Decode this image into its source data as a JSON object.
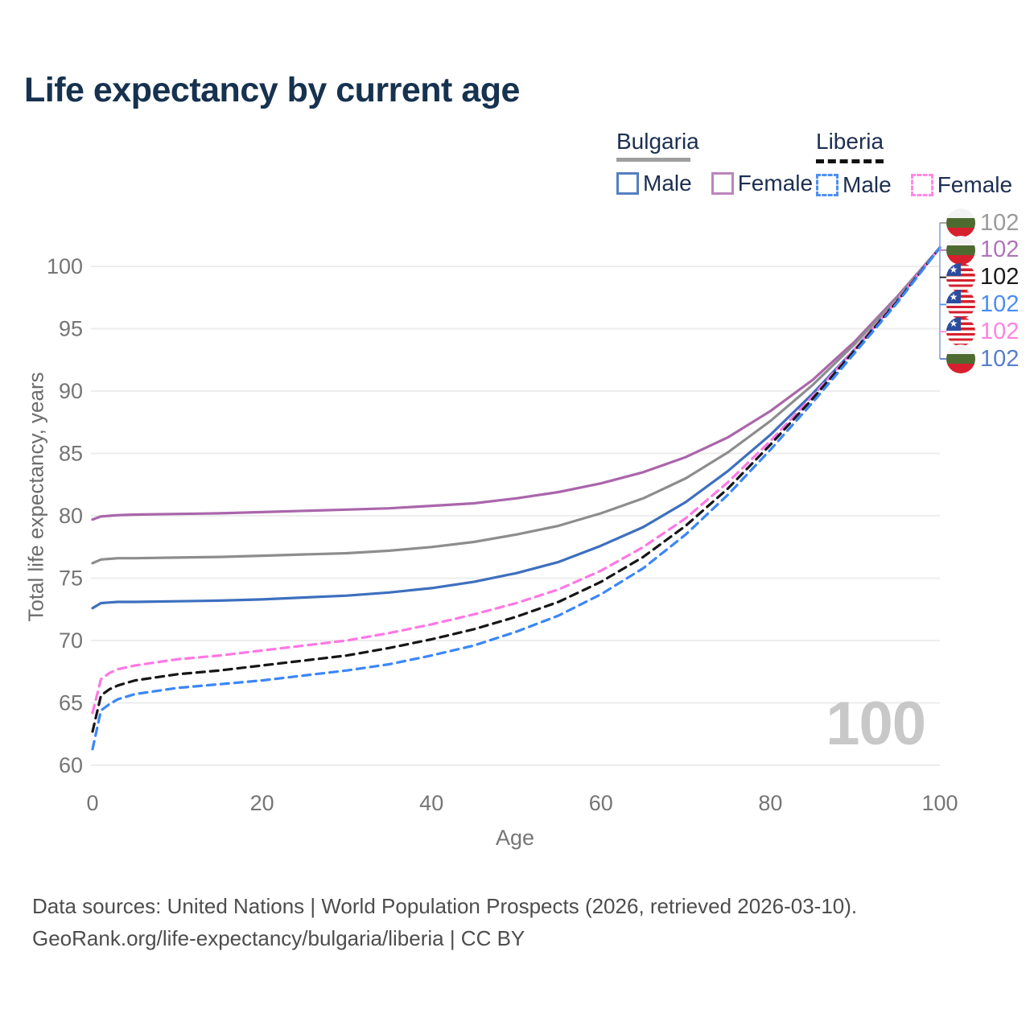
{
  "title": "Life expectancy by current age",
  "legend": {
    "groups": [
      {
        "label": "Bulgaria",
        "line_style": "solid",
        "underline_color": "#9e9e9e",
        "items": [
          {
            "label": "Male",
            "color": "#3d6fbe",
            "dashed": false
          },
          {
            "label": "Female",
            "color": "#aa65ab",
            "dashed": false
          }
        ]
      },
      {
        "label": "Liberia",
        "line_style": "dashed",
        "underline_color": "#111111",
        "items": [
          {
            "label": "Male",
            "color": "#3b87f7",
            "dashed": true
          },
          {
            "label": "Female",
            "color": "#ff77e4",
            "dashed": true
          }
        ]
      }
    ]
  },
  "axes": {
    "x": {
      "title": "Age",
      "ticks": [
        0,
        20,
        40,
        60,
        80,
        100
      ],
      "range": [
        0,
        100
      ]
    },
    "y": {
      "title": "Total life expectancy, years",
      "ticks": [
        60,
        65,
        70,
        75,
        80,
        85,
        90,
        95,
        100
      ],
      "range": [
        58,
        103
      ],
      "grid": true
    }
  },
  "watermark": {
    "value": "100"
  },
  "end_labels": [
    {
      "flag": "bulgaria",
      "series": "Bulgaria Both",
      "value": "102",
      "color": "#9a9a9a"
    },
    {
      "flag": "bulgaria",
      "series": "Bulgaria Female",
      "value": "102",
      "color": "#af74b8"
    },
    {
      "flag": "liberia",
      "series": "Liberia Both",
      "value": "102",
      "color": "#1a1a1a"
    },
    {
      "flag": "liberia",
      "series": "Liberia Male",
      "value": "102",
      "color": "#4a8ef2"
    },
    {
      "flag": "liberia",
      "series": "Liberia Female",
      "value": "102",
      "color": "#ff83e4"
    },
    {
      "flag": "bulgaria",
      "series": "Bulgaria Male",
      "value": "102",
      "color": "#597fcd"
    }
  ],
  "chart_data": {
    "type": "line",
    "title": "Life expectancy by current age",
    "xlabel": "Age",
    "ylabel": "Total life expectancy, years",
    "xlim": [
      0,
      100
    ],
    "ylim": [
      58,
      103
    ],
    "grid": "horizontal",
    "legend_position": "top-right",
    "x": [
      0,
      1,
      2,
      3,
      5,
      10,
      15,
      20,
      25,
      30,
      35,
      40,
      45,
      50,
      55,
      60,
      65,
      70,
      75,
      80,
      85,
      90,
      95,
      100
    ],
    "series": [
      {
        "name": "Bulgaria Female",
        "country": "Bulgaria",
        "sex": "female",
        "color": "#aa65ab",
        "dashed": false,
        "values": [
          79.7,
          79.95,
          80.0,
          80.05,
          80.1,
          80.15,
          80.2,
          80.3,
          80.4,
          80.5,
          80.6,
          80.8,
          81.0,
          81.4,
          81.9,
          82.6,
          83.5,
          84.7,
          86.3,
          88.4,
          90.9,
          94.0,
          97.6,
          101.5
        ]
      },
      {
        "name": "Bulgaria Both",
        "country": "Bulgaria",
        "sex": "both",
        "color": "#8d8d8d",
        "dashed": false,
        "values": [
          76.2,
          76.5,
          76.55,
          76.6,
          76.6,
          76.65,
          76.7,
          76.8,
          76.9,
          77.0,
          77.2,
          77.5,
          77.9,
          78.5,
          79.2,
          80.2,
          81.4,
          83.0,
          85.1,
          87.6,
          90.5,
          93.8,
          97.5,
          101.5
        ]
      },
      {
        "name": "Bulgaria Male",
        "country": "Bulgaria",
        "sex": "male",
        "color": "#3d6fbe",
        "dashed": false,
        "values": [
          72.6,
          73.0,
          73.05,
          73.1,
          73.1,
          73.15,
          73.2,
          73.3,
          73.45,
          73.6,
          73.85,
          74.2,
          74.7,
          75.4,
          76.3,
          77.6,
          79.1,
          81.1,
          83.6,
          86.5,
          89.8,
          93.4,
          97.3,
          101.5
        ]
      },
      {
        "name": "Liberia Female",
        "country": "Liberia",
        "sex": "female",
        "color": "#ff77e4",
        "dashed": true,
        "values": [
          64.2,
          66.9,
          67.4,
          67.7,
          68.0,
          68.5,
          68.8,
          69.2,
          69.6,
          70.0,
          70.6,
          71.3,
          72.1,
          73.0,
          74.1,
          75.6,
          77.5,
          79.8,
          82.7,
          86.0,
          89.6,
          93.4,
          97.3,
          101.5
        ]
      },
      {
        "name": "Liberia Both",
        "country": "Liberia",
        "sex": "both",
        "color": "#161616",
        "dashed": true,
        "values": [
          62.7,
          65.6,
          66.1,
          66.4,
          66.8,
          67.3,
          67.6,
          68.0,
          68.4,
          68.8,
          69.4,
          70.1,
          70.9,
          71.9,
          73.1,
          74.7,
          76.7,
          79.2,
          82.2,
          85.7,
          89.4,
          93.3,
          97.2,
          101.5
        ]
      },
      {
        "name": "Liberia Male",
        "country": "Liberia",
        "sex": "male",
        "color": "#3b87f7",
        "dashed": true,
        "values": [
          61.3,
          64.4,
          64.9,
          65.3,
          65.7,
          66.2,
          66.5,
          66.8,
          67.2,
          67.6,
          68.1,
          68.8,
          69.6,
          70.7,
          72.0,
          73.7,
          75.8,
          78.5,
          81.7,
          85.3,
          89.1,
          93.1,
          97.1,
          101.5
        ]
      }
    ]
  },
  "footer": {
    "line1": "Data sources: United Nations | World Population Prospects (2026, retrieved 2026-03-10).",
    "line2": "GeoRank.org/life-expectancy/bulgaria/liberia | CC BY"
  }
}
